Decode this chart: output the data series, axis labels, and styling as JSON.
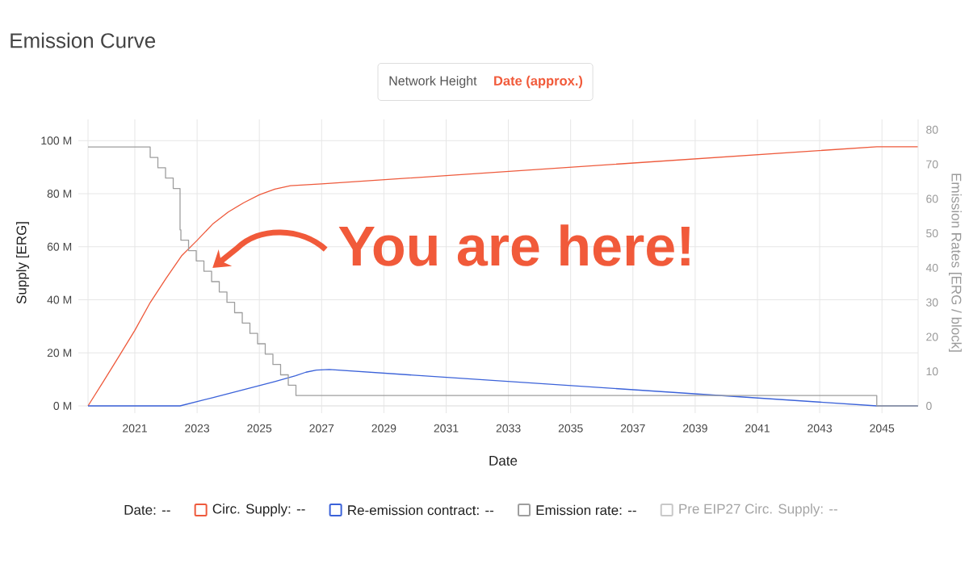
{
  "chart_data": {
    "type": "line",
    "title": "Emission Curve",
    "xlabel": "Date",
    "ylabel": "Supply [ERG]",
    "y2label": "Emission Rates [ERG / block]",
    "xlim": [
      "2019-07-01",
      "2046-03"
    ],
    "xticks": [
      "2021",
      "2023",
      "2025",
      "2027",
      "2029",
      "2031",
      "2033",
      "2035",
      "2037",
      "2039",
      "2041",
      "2043",
      "2045"
    ],
    "ylim": [
      0,
      108000000
    ],
    "yticks": [
      {
        "value": 0,
        "label": "0 M"
      },
      {
        "value": 20000000,
        "label": "20 M"
      },
      {
        "value": 40000000,
        "label": "40 M"
      },
      {
        "value": 60000000,
        "label": "60 M"
      },
      {
        "value": 80000000,
        "label": "80 M"
      },
      {
        "value": 100000000,
        "label": "100 M"
      }
    ],
    "y2lim": [
      0,
      83
    ],
    "y2ticks": [
      0,
      10,
      20,
      30,
      40,
      50,
      60,
      70,
      80
    ],
    "grid": true,
    "legend": "bottom",
    "series": [
      {
        "name": "Circ. Supply: --",
        "color": "#ee5a3c",
        "x": [
          "2019-07-01",
          "2020-01",
          "2020-07",
          "2021-01",
          "2021-07",
          "2022-01",
          "2022-07",
          "2023-01",
          "2023-07",
          "2024-01",
          "2024-07",
          "2025-01",
          "2025-07",
          "2026-01",
          "2027-01",
          "2044-11",
          "2046-03"
        ],
        "values": [
          0,
          9400000,
          18800000,
          28500000,
          39000000,
          48000000,
          56500000,
          62400000,
          68500000,
          73100000,
          76600000,
          79600000,
          81700000,
          83000000,
          83700000,
          97700000,
          97700000
        ]
      },
      {
        "name": "Re-emission contract: --",
        "color": "#3b62d9",
        "x": [
          "2019-07-01",
          "2022-06-15",
          "2023-07",
          "2024-07",
          "2025-07",
          "2026-03",
          "2026-07",
          "2026-11",
          "2027-04",
          "2044-11",
          "2046-03"
        ],
        "values": [
          0,
          0,
          3100000,
          6100000,
          9200000,
          11400000,
          12700000,
          13500000,
          13700000,
          0,
          0
        ]
      },
      {
        "name": "Emission rate: --",
        "type": "step",
        "axis": "y2",
        "color": "#9e9e9e",
        "x": [
          "2019-07-01",
          "2021-06-30",
          "2021-09-28",
          "2021-12-27",
          "2022-03-27",
          "2022-06-15",
          "2022-06-25",
          "2022-09-23",
          "2022-12-22",
          "2023-03-22",
          "2023-06-20",
          "2023-09-18",
          "2023-12-17",
          "2024-03-16",
          "2024-06-14",
          "2024-09-12",
          "2024-12-11",
          "2025-03-11",
          "2025-06-09",
          "2025-09-07",
          "2025-12-06",
          "2026-03-06",
          "2044-11",
          "2046-03"
        ],
        "values": [
          75,
          72,
          69,
          66,
          63,
          51,
          48,
          45,
          42,
          39,
          36,
          33,
          30,
          27,
          24,
          21,
          18,
          15,
          12,
          9,
          6,
          3,
          0,
          0
        ]
      },
      {
        "name": "Pre EIP27 Circ. Supply: --",
        "color": "#c8c8c8"
      }
    ],
    "annotations": [
      "Network Height",
      "Date (approx.)",
      "Date: --",
      {
        "text": "You are here!",
        "x": "2023-07",
        "y": 52000000
      }
    ]
  }
}
